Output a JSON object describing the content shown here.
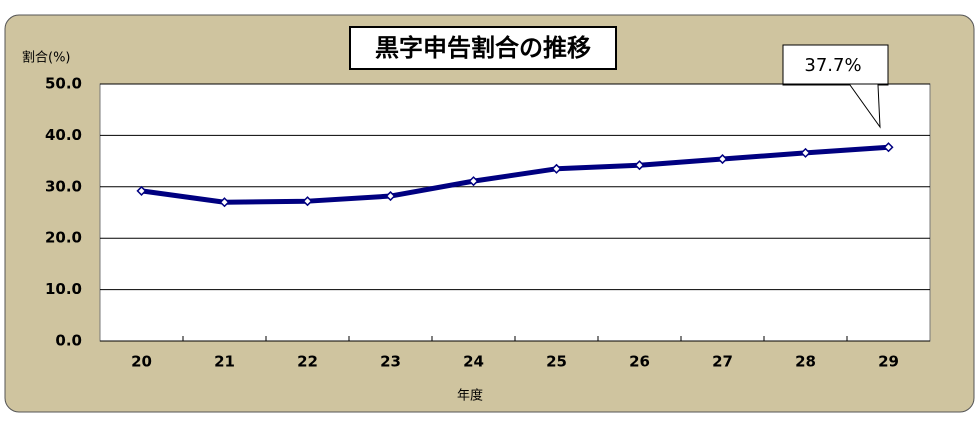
{
  "chart_data": {
    "type": "line",
    "title": "黒字申告割合の推移",
    "y_label": "割合(%)",
    "x_label": "年度",
    "categories": [
      "20",
      "21",
      "22",
      "23",
      "24",
      "25",
      "26",
      "27",
      "28",
      "29"
    ],
    "values": [
      29.2,
      27.0,
      27.2,
      28.2,
      31.1,
      33.5,
      34.2,
      35.4,
      36.6,
      37.7
    ],
    "color": "#000080",
    "annotation": "37.7%",
    "ylim": [
      0,
      50
    ],
    "yticks": [
      {
        "value": 0,
        "label": "0.0"
      },
      {
        "value": 10,
        "label": "10.0"
      },
      {
        "value": 20,
        "label": "20.0"
      },
      {
        "value": 30,
        "label": "30.0"
      },
      {
        "value": 40,
        "label": "40.0"
      },
      {
        "value": 50,
        "label": "50.0"
      }
    ],
    "grid": true
  }
}
